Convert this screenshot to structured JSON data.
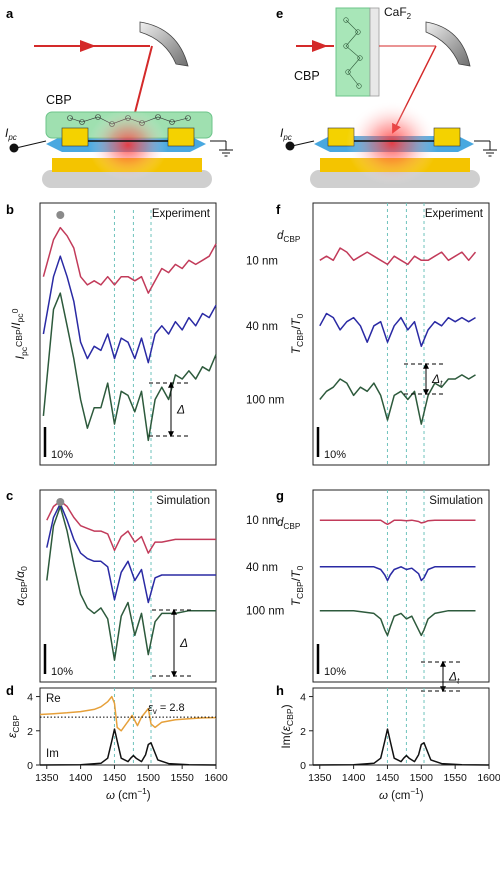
{
  "panels": {
    "a": "a",
    "b": "b",
    "c": "c",
    "d": "d",
    "e": "e",
    "f": "f",
    "g": "g",
    "h": "h"
  },
  "schematic_a": {
    "material": "CBP",
    "current": "I",
    "current_sub": "pc"
  },
  "schematic_e": {
    "material": "CBP",
    "window": "CaF",
    "window_sub": "2",
    "current": "I",
    "current_sub": "pc"
  },
  "colors": {
    "red_series": "#c23b5a",
    "blue_series": "#2a2aa4",
    "green_series": "#2d5a3c",
    "real_part": "#e6a03a",
    "imag_part": "#111111",
    "guide_lines": "#6fc3bd"
  },
  "guide_lines_cm": [
    1450,
    1478,
    1504
  ],
  "chart_data": [
    {
      "panel": "b",
      "type": "line",
      "title": "Experiment",
      "ylabel": "I_pc^CBP/I_pc^0",
      "xlabel": "",
      "xlim": [
        1340,
        1600
      ],
      "scale_bar": "10%",
      "marker": "circle at peak",
      "annotation": "Δ",
      "series": [
        {
          "name": "",
          "color": "red",
          "x": [
            1345,
            1360,
            1370,
            1380,
            1390,
            1400,
            1410,
            1420,
            1430,
            1440,
            1450,
            1460,
            1470,
            1480,
            1490,
            1500,
            1510,
            1520,
            1530,
            1540,
            1550,
            1560,
            1570,
            1580,
            1590,
            1600
          ],
          "values": [
            0.86,
            0.95,
            0.98,
            0.96,
            0.93,
            0.86,
            0.84,
            0.85,
            0.84,
            0.86,
            0.84,
            0.86,
            0.86,
            0.85,
            0.86,
            0.82,
            0.85,
            0.88,
            0.87,
            0.89,
            0.88,
            0.9,
            0.89,
            0.9,
            0.91,
            0.94
          ]
        },
        {
          "name": "",
          "color": "blue",
          "x": [
            1345,
            1360,
            1370,
            1380,
            1390,
            1400,
            1410,
            1420,
            1430,
            1440,
            1450,
            1460,
            1470,
            1480,
            1490,
            1500,
            1510,
            1520,
            1530,
            1540,
            1550,
            1560,
            1570,
            1580,
            1590,
            1600
          ],
          "values": [
            0.72,
            0.86,
            0.91,
            0.86,
            0.8,
            0.7,
            0.66,
            0.69,
            0.68,
            0.72,
            0.66,
            0.71,
            0.7,
            0.66,
            0.71,
            0.65,
            0.72,
            0.74,
            0.72,
            0.75,
            0.73,
            0.76,
            0.74,
            0.77,
            0.76,
            0.79
          ]
        },
        {
          "name": "",
          "color": "green",
          "x": [
            1345,
            1360,
            1370,
            1380,
            1390,
            1400,
            1410,
            1420,
            1430,
            1440,
            1450,
            1460,
            1470,
            1480,
            1490,
            1500,
            1510,
            1520,
            1530,
            1540,
            1550,
            1560,
            1570,
            1580,
            1590,
            1600
          ],
          "values": [
            0.52,
            0.78,
            0.82,
            0.74,
            0.66,
            0.56,
            0.49,
            0.54,
            0.54,
            0.6,
            0.5,
            0.58,
            0.57,
            0.53,
            0.58,
            0.46,
            0.56,
            0.59,
            0.56,
            0.62,
            0.61,
            0.63,
            0.61,
            0.64,
            0.63,
            0.67
          ]
        }
      ]
    },
    {
      "panel": "c",
      "type": "line",
      "title": "Simulation",
      "ylabel": "α_CBP/α_0",
      "xlabel": "",
      "xlim": [
        1340,
        1600
      ],
      "scale_bar": "10%",
      "marker": "circle at peak",
      "annotation": "Δ",
      "series": [
        {
          "name": "",
          "color": "red",
          "x": [
            1350,
            1360,
            1370,
            1380,
            1390,
            1400,
            1410,
            1420,
            1430,
            1440,
            1450,
            1460,
            1470,
            1480,
            1490,
            1500,
            1510,
            1520,
            1540,
            1560,
            1580,
            1600
          ],
          "values": [
            0.92,
            0.97,
            0.99,
            0.97,
            0.93,
            0.9,
            0.89,
            0.88,
            0.88,
            0.87,
            0.81,
            0.86,
            0.88,
            0.84,
            0.86,
            0.8,
            0.84,
            0.84,
            0.85,
            0.85,
            0.85,
            0.85
          ]
        },
        {
          "name": "",
          "color": "blue",
          "x": [
            1350,
            1360,
            1370,
            1380,
            1390,
            1400,
            1410,
            1420,
            1430,
            1440,
            1450,
            1460,
            1470,
            1480,
            1490,
            1500,
            1510,
            1520,
            1540,
            1560,
            1580,
            1600
          ],
          "values": [
            0.82,
            0.93,
            0.98,
            0.92,
            0.85,
            0.8,
            0.78,
            0.77,
            0.77,
            0.75,
            0.63,
            0.73,
            0.77,
            0.7,
            0.74,
            0.62,
            0.71,
            0.72,
            0.72,
            0.72,
            0.72,
            0.72
          ]
        },
        {
          "name": "",
          "color": "green",
          "x": [
            1350,
            1360,
            1370,
            1380,
            1390,
            1400,
            1410,
            1420,
            1430,
            1440,
            1450,
            1460,
            1470,
            1480,
            1490,
            1500,
            1510,
            1520,
            1540,
            1560,
            1580,
            1600
          ],
          "values": [
            0.7,
            0.9,
            0.97,
            0.88,
            0.76,
            0.65,
            0.6,
            0.58,
            0.6,
            0.56,
            0.41,
            0.57,
            0.62,
            0.5,
            0.58,
            0.43,
            0.55,
            0.58,
            0.58,
            0.59,
            0.59,
            0.59
          ]
        }
      ]
    },
    {
      "panel": "d",
      "type": "line",
      "ylabel": "ε_CBP",
      "xlabel": "ω (cm−1)",
      "xlim": [
        1340,
        1600
      ],
      "ylim": [
        0,
        4.5
      ],
      "yticks": [
        "0",
        "2",
        "4"
      ],
      "xticks": [
        "1350",
        "1400",
        "1450",
        "1500",
        "1550",
        "1600"
      ],
      "reference_line": {
        "label": "ε_v = 2.8",
        "value": 2.8,
        "style": "dotted"
      },
      "series": [
        {
          "name": "Re",
          "color": "orange",
          "x": [
            1340,
            1360,
            1380,
            1400,
            1420,
            1430,
            1440,
            1446,
            1450,
            1454,
            1460,
            1470,
            1476,
            1480,
            1484,
            1490,
            1496,
            1500,
            1504,
            1510,
            1520,
            1540,
            1560,
            1580,
            1600
          ],
          "values": [
            2.95,
            3.0,
            3.05,
            3.12,
            3.25,
            3.4,
            3.7,
            4.0,
            3.6,
            2.2,
            2.0,
            2.55,
            2.9,
            2.6,
            2.3,
            2.8,
            3.1,
            3.3,
            2.4,
            2.2,
            2.5,
            2.65,
            2.7,
            2.75,
            2.77
          ]
        },
        {
          "name": "Im",
          "color": "black",
          "x": [
            1340,
            1400,
            1430,
            1440,
            1446,
            1450,
            1454,
            1460,
            1470,
            1474,
            1478,
            1482,
            1490,
            1496,
            1500,
            1504,
            1508,
            1514,
            1530,
            1560,
            1600
          ],
          "values": [
            0,
            0.02,
            0.1,
            0.4,
            1.4,
            2.1,
            1.4,
            0.4,
            0.2,
            0.4,
            0.55,
            0.4,
            0.2,
            0.6,
            1.2,
            1.3,
            0.9,
            0.3,
            0.08,
            0.02,
            0
          ]
        }
      ]
    },
    {
      "panel": "f",
      "type": "line",
      "title": "Experiment",
      "ylabel": "T_CBP/T_0",
      "xlabel": "",
      "xlim": [
        1340,
        1600
      ],
      "scale_bar": "10%",
      "legend_title": "d_CBP",
      "annotation": "Δt",
      "series": [
        {
          "name": "10 nm",
          "color": "red",
          "x": [
            1350,
            1360,
            1370,
            1380,
            1390,
            1400,
            1410,
            1420,
            1430,
            1440,
            1450,
            1460,
            1470,
            1480,
            1490,
            1500,
            1510,
            1520,
            1530,
            1540,
            1550,
            1560,
            1570,
            1580
          ],
          "values": [
            0.9,
            0.91,
            0.9,
            0.93,
            0.92,
            0.9,
            0.91,
            0.92,
            0.91,
            0.9,
            0.89,
            0.91,
            0.9,
            0.89,
            0.91,
            0.9,
            0.9,
            0.91,
            0.92,
            0.9,
            0.91,
            0.92,
            0.9,
            0.92
          ]
        },
        {
          "name": "40 nm",
          "color": "blue",
          "x": [
            1350,
            1360,
            1370,
            1380,
            1390,
            1400,
            1410,
            1420,
            1430,
            1440,
            1450,
            1460,
            1470,
            1480,
            1490,
            1500,
            1510,
            1520,
            1530,
            1540,
            1550,
            1560,
            1570,
            1580
          ],
          "values": [
            0.74,
            0.77,
            0.76,
            0.73,
            0.75,
            0.76,
            0.74,
            0.7,
            0.74,
            0.75,
            0.7,
            0.74,
            0.76,
            0.73,
            0.75,
            0.69,
            0.73,
            0.75,
            0.74,
            0.76,
            0.75,
            0.76,
            0.75,
            0.76
          ]
        },
        {
          "name": "100 nm",
          "color": "green",
          "x": [
            1350,
            1360,
            1370,
            1380,
            1390,
            1400,
            1410,
            1420,
            1430,
            1440,
            1450,
            1460,
            1470,
            1480,
            1490,
            1500,
            1510,
            1520,
            1530,
            1540,
            1550,
            1560,
            1570,
            1580
          ],
          "values": [
            0.56,
            0.58,
            0.59,
            0.61,
            0.6,
            0.57,
            0.59,
            0.58,
            0.6,
            0.57,
            0.51,
            0.57,
            0.58,
            0.56,
            0.58,
            0.5,
            0.57,
            0.6,
            0.59,
            0.61,
            0.61,
            0.62,
            0.61,
            0.62
          ]
        }
      ]
    },
    {
      "panel": "g",
      "type": "line",
      "title": "Simulation",
      "ylabel": "T_CBP/T_0",
      "xlabel": "",
      "xlim": [
        1340,
        1600
      ],
      "scale_bar": "10%",
      "legend_title": "d_CBP",
      "annotation": "Δt",
      "series": [
        {
          "name": "10 nm",
          "color": "red",
          "x": [
            1350,
            1400,
            1430,
            1440,
            1446,
            1450,
            1454,
            1460,
            1470,
            1478,
            1486,
            1496,
            1500,
            1504,
            1510,
            1520,
            1540,
            1560,
            1580
          ],
          "values": [
            0.92,
            0.92,
            0.92,
            0.92,
            0.91,
            0.905,
            0.91,
            0.92,
            0.92,
            0.918,
            0.92,
            0.915,
            0.91,
            0.912,
            0.918,
            0.92,
            0.92,
            0.92,
            0.92
          ]
        },
        {
          "name": "40 nm",
          "color": "blue",
          "x": [
            1350,
            1400,
            1430,
            1440,
            1446,
            1450,
            1454,
            1460,
            1470,
            1478,
            1486,
            1496,
            1500,
            1504,
            1510,
            1520,
            1540,
            1560,
            1580
          ],
          "values": [
            0.75,
            0.75,
            0.75,
            0.74,
            0.72,
            0.7,
            0.72,
            0.74,
            0.75,
            0.74,
            0.745,
            0.725,
            0.7,
            0.71,
            0.74,
            0.75,
            0.75,
            0.75,
            0.75
          ]
        },
        {
          "name": "100 nm",
          "color": "green",
          "x": [
            1350,
            1400,
            1430,
            1440,
            1446,
            1450,
            1454,
            1460,
            1470,
            1478,
            1486,
            1496,
            1500,
            1504,
            1510,
            1520,
            1540,
            1560,
            1580
          ],
          "values": [
            0.59,
            0.59,
            0.58,
            0.56,
            0.52,
            0.5,
            0.53,
            0.57,
            0.58,
            0.56,
            0.57,
            0.52,
            0.5,
            0.52,
            0.56,
            0.58,
            0.59,
            0.59,
            0.59
          ]
        }
      ]
    },
    {
      "panel": "h",
      "type": "line",
      "ylabel": "Im(ε_CBP)",
      "xlabel": "ω (cm−1)",
      "xlim": [
        1340,
        1600
      ],
      "ylim": [
        0,
        4.5
      ],
      "yticks": [
        "0",
        "2",
        "4"
      ],
      "xticks": [
        "1350",
        "1400",
        "1450",
        "1500",
        "1550",
        "1600"
      ],
      "series": [
        {
          "name": "",
          "color": "black",
          "x": [
            1340,
            1400,
            1430,
            1440,
            1446,
            1450,
            1454,
            1460,
            1470,
            1474,
            1478,
            1482,
            1490,
            1496,
            1500,
            1504,
            1508,
            1514,
            1530,
            1560,
            1600
          ],
          "values": [
            0,
            0.02,
            0.1,
            0.4,
            1.4,
            2.1,
            1.4,
            0.4,
            0.2,
            0.4,
            0.55,
            0.4,
            0.2,
            0.6,
            1.2,
            1.3,
            0.9,
            0.3,
            0.08,
            0.02,
            0
          ]
        }
      ]
    }
  ]
}
